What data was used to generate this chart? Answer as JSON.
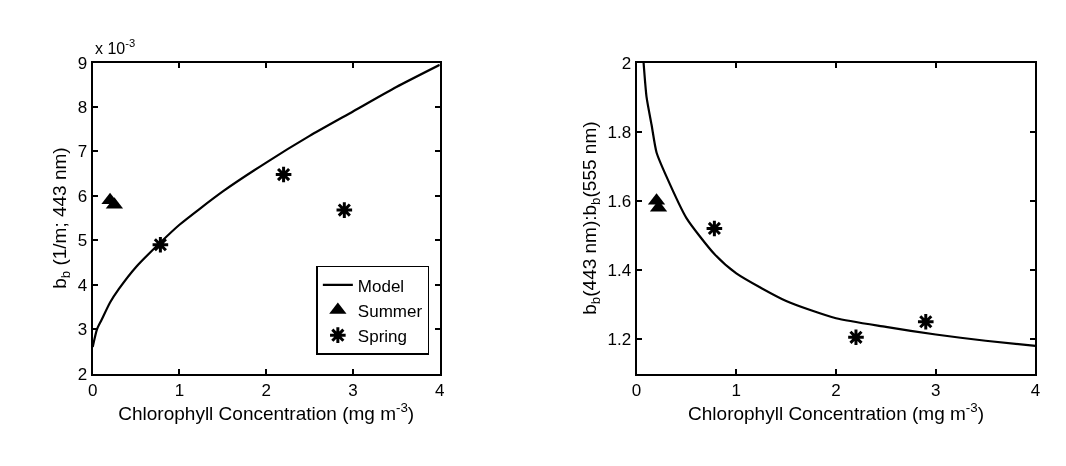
{
  "chart_data": [
    {
      "type": "scatter",
      "xlabel": "Chlorophyll Concentration (mg m$^{-3}$)",
      "ylabel": "b$_{b}$ (1/m; 443 nm)",
      "annotations": [
        "x 10$^{-3}$"
      ],
      "xlim": [
        0,
        4
      ],
      "xticks": [
        0,
        1,
        2,
        3,
        4
      ],
      "ylim": [
        2,
        9
      ],
      "yticks": [
        2,
        3,
        4,
        5,
        6,
        7,
        8,
        9
      ],
      "legend": "bottom right",
      "series": [
        {
          "name": "Model",
          "type": "line",
          "marker": "none",
          "line_style": "solid",
          "color": "#000000",
          "x": [
            0,
            0.05,
            0.1,
            0.2,
            0.3,
            0.5,
            0.78,
            1,
            1.5,
            2,
            2.5,
            3,
            3.5,
            4
          ],
          "values": [
            2.6,
            3.0,
            3.2,
            3.6,
            3.9,
            4.4,
            4.95,
            5.35,
            6.1,
            6.75,
            7.35,
            7.9,
            8.45,
            8.95
          ]
        },
        {
          "name": "Summer",
          "marker": "triangle",
          "color": "#000000",
          "x": [
            0.2,
            0.25
          ],
          "values": [
            5.9,
            5.8
          ]
        },
        {
          "name": "Spring",
          "marker": "cross",
          "color": "#000000",
          "x": [
            0.78,
            2.2,
            2.9
          ],
          "values": [
            4.9,
            6.48,
            5.68
          ]
        }
      ]
    },
    {
      "type": "scatter",
      "xlabel": "Chlorophyll Concentration (mg m$^{-3}$)",
      "ylabel": "b$_{b}$(443 nm):b$_{b}$(555 nm)",
      "xlim": [
        0,
        4
      ],
      "xticks": [
        0,
        1,
        2,
        3,
        4
      ],
      "ylim": [
        1.1,
        2
      ],
      "yticks": [
        1.2,
        1.4,
        1.6,
        1.8,
        2
      ],
      "series": [
        {
          "type": "line",
          "marker": "none",
          "line_style": "solid",
          "color": "#000000",
          "x": [
            0.07,
            0.1,
            0.15,
            0.2,
            0.3,
            0.5,
            0.78,
            1,
            1.5,
            2,
            2.5,
            3,
            3.5,
            4
          ],
          "values": [
            2,
            1.9,
            1.82,
            1.74,
            1.67,
            1.55,
            1.446,
            1.39,
            1.31,
            1.26,
            1.235,
            1.213,
            1.195,
            1.18
          ]
        },
        {
          "marker": "triangle",
          "color": "#000000",
          "x": [
            0.2,
            0.22
          ],
          "values": [
            1.6,
            1.58
          ]
        },
        {
          "marker": "cross",
          "color": "#000000",
          "x": [
            0.78,
            2.2,
            2.9
          ],
          "values": [
            1.52,
            1.205,
            1.25
          ]
        }
      ]
    }
  ]
}
